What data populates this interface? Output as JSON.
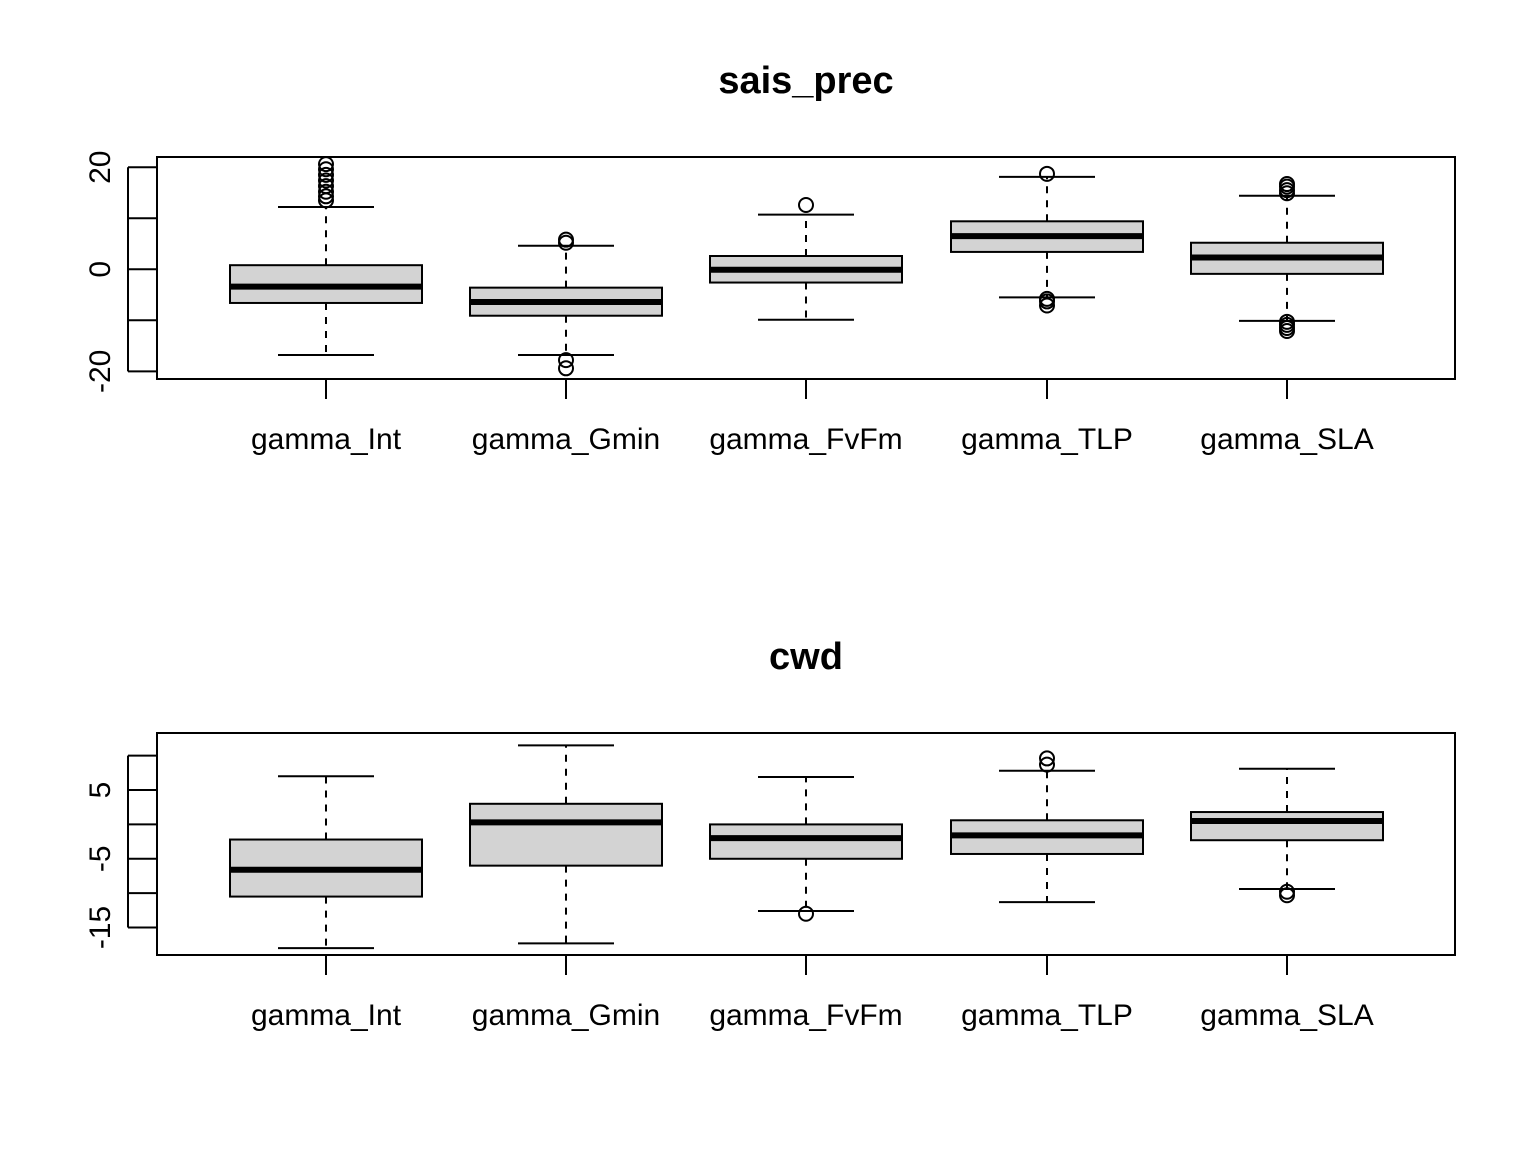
{
  "chart_data": [
    {
      "type": "box",
      "title": "sais_prec",
      "xlabel": "",
      "ylabel": "",
      "categories": [
        "gamma_Int",
        "gamma_Gmin",
        "gamma_FvFm",
        "gamma_TLP",
        "gamma_SLA"
      ],
      "ylim": [
        -21.5,
        22.0
      ],
      "y_tick_labels": [
        "-20",
        "0",
        "20"
      ],
      "y_ticks": [
        -20,
        -10,
        0,
        10,
        20
      ],
      "boxes": [
        {
          "name": "gamma_Int",
          "whisker_low": -16.8,
          "q1": -6.6,
          "median": -3.4,
          "q3": 0.8,
          "whisker_high": 12.2,
          "outliers": [
            13.5,
            14.3,
            15.2,
            16.3,
            17.4,
            18.5,
            19.6,
            20.6
          ]
        },
        {
          "name": "gamma_Gmin",
          "whisker_low": -16.8,
          "q1": -9.1,
          "median": -6.4,
          "q3": -3.6,
          "whisker_high": 4.6,
          "outliers": [
            5.2,
            5.8,
            -17.8,
            -19.4
          ]
        },
        {
          "name": "gamma_FvFm",
          "whisker_low": -9.9,
          "q1": -2.6,
          "median": -0.1,
          "q3": 2.6,
          "whisker_high": 10.7,
          "outliers": [
            12.6
          ]
        },
        {
          "name": "gamma_TLP",
          "whisker_low": -5.5,
          "q1": 3.4,
          "median": 6.5,
          "q3": 9.4,
          "whisker_high": 18.1,
          "outliers": [
            18.7,
            -5.8,
            -6.3,
            -7.1
          ]
        },
        {
          "name": "gamma_SLA",
          "whisker_low": -10.1,
          "q1": -0.9,
          "median": 2.3,
          "q3": 5.2,
          "whisker_high": 14.4,
          "outliers": [
            14.9,
            15.5,
            16.2,
            16.7,
            -10.3,
            -10.9,
            -11.5,
            -12.1
          ]
        }
      ],
      "fill_color": "#d3d3d3"
    },
    {
      "type": "box",
      "title": "cwd",
      "xlabel": "",
      "ylabel": "",
      "categories": [
        "gamma_Int",
        "gamma_Gmin",
        "gamma_FvFm",
        "gamma_TLP",
        "gamma_SLA"
      ],
      "ylim": [
        -19.0,
        13.3
      ],
      "y_tick_labels": [
        "-15",
        "-5",
        "5"
      ],
      "y_ticks": [
        -15,
        -10,
        -5,
        0,
        5,
        10
      ],
      "boxes": [
        {
          "name": "gamma_Int",
          "whisker_low": -18.0,
          "q1": -10.5,
          "median": -6.6,
          "q3": -2.2,
          "whisker_high": 7.0,
          "outliers": []
        },
        {
          "name": "gamma_Gmin",
          "whisker_low": -17.3,
          "q1": -6.0,
          "median": 0.3,
          "q3": 3.0,
          "whisker_high": 11.5,
          "outliers": []
        },
        {
          "name": "gamma_FvFm",
          "whisker_low": -12.6,
          "q1": -5.0,
          "median": -2.0,
          "q3": 0.0,
          "whisker_high": 6.9,
          "outliers": [
            -13.0
          ]
        },
        {
          "name": "gamma_TLP",
          "whisker_low": -11.3,
          "q1": -4.3,
          "median": -1.6,
          "q3": 0.6,
          "whisker_high": 7.8,
          "outliers": [
            8.7,
            9.6
          ]
        },
        {
          "name": "gamma_SLA",
          "whisker_low": -9.4,
          "q1": -2.3,
          "median": 0.5,
          "q3": 1.8,
          "whisker_high": 8.1,
          "outliers": [
            -9.8,
            -10.3
          ]
        }
      ],
      "fill_color": "#d3d3d3"
    }
  ]
}
